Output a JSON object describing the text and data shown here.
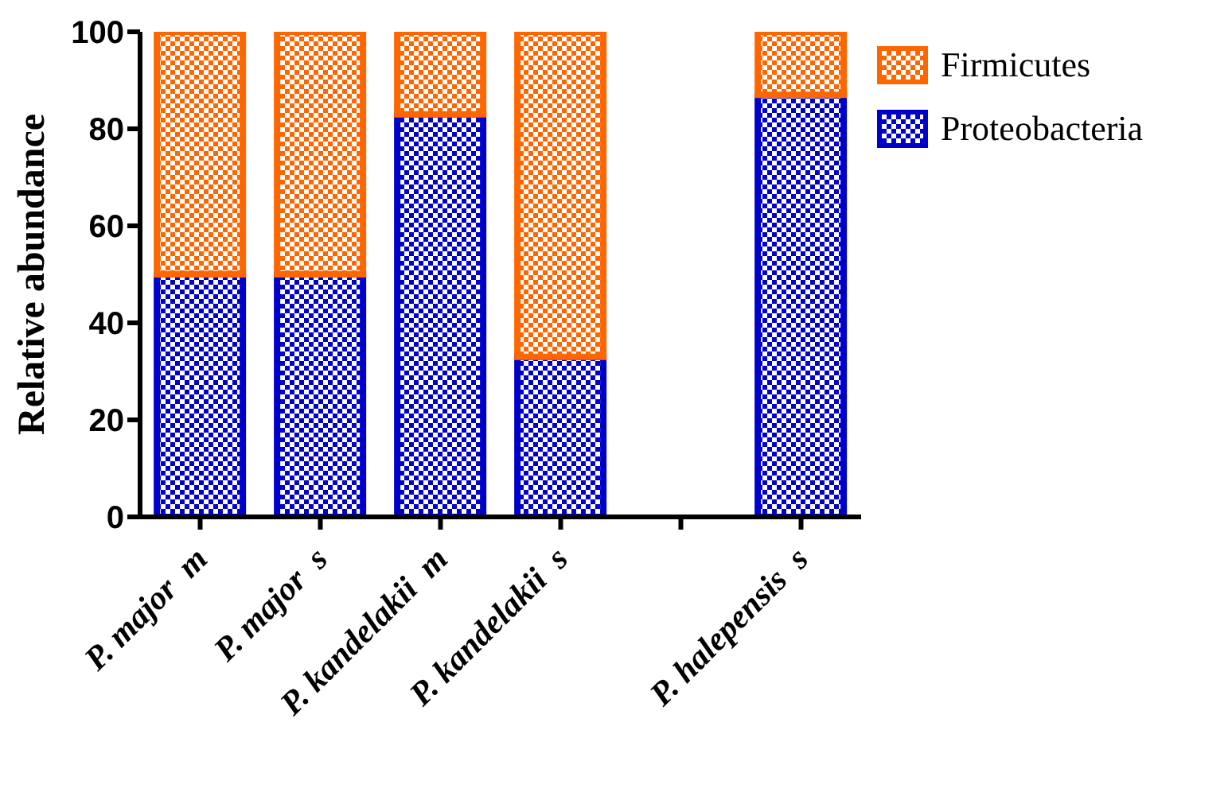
{
  "chart_data": {
    "type": "bar",
    "stacked": true,
    "ylabel": "Relative abundance",
    "categories": [
      "P. major  m",
      "P. major  s",
      "P. kandelakii  m",
      "P. kandelakii  s",
      null,
      "P. halepensis  s"
    ],
    "series": [
      {
        "name": "Proteobacteria",
        "color": "#0000cc",
        "values": [
          50,
          50,
          83,
          33,
          null,
          87
        ]
      },
      {
        "name": "Firmicutes",
        "color": "#ff6600",
        "values": [
          50,
          50,
          17,
          67,
          null,
          13
        ]
      }
    ],
    "ylim": [
      0,
      100
    ],
    "yticks": [
      0,
      20,
      40,
      60,
      80,
      100
    ],
    "grid": false,
    "legend": "right"
  }
}
